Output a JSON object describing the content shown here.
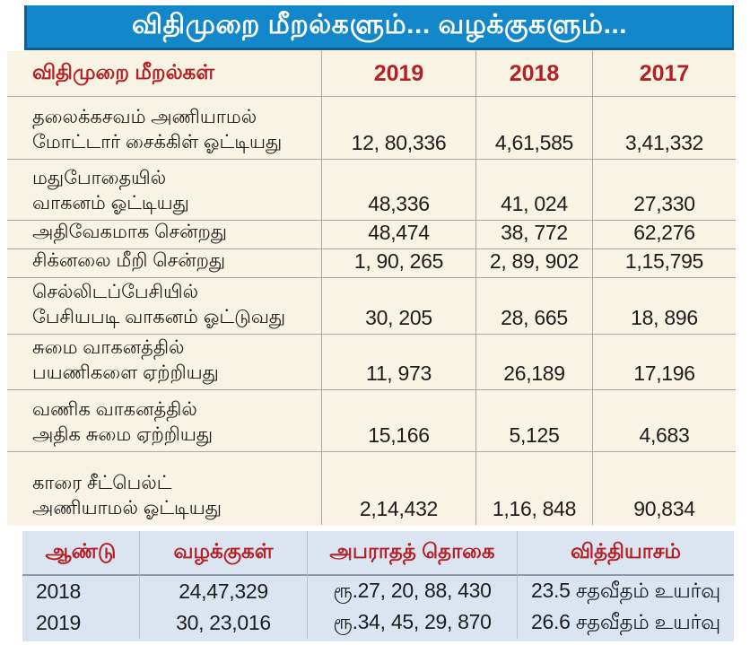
{
  "title": "விதிமுறை மீறல்களும்... வழக்குகளும்...",
  "colors": {
    "title_bar_blue": "#1287c9",
    "title_text": "#ffffff",
    "violations_panel_cream": "#f8f3e2",
    "cases_panel_light_blue": "#dbe5f1",
    "accent_red": "#b32025",
    "value_text": "#1c1c1c",
    "grid_line": "#aaa79b"
  },
  "chart_data": [
    {
      "type": "table",
      "name": "traffic-violations-by-year",
      "header_label": "விதிமுறை மீறல்கள்",
      "year_columns": [
        "2019",
        "2018",
        "2017"
      ],
      "rows": [
        {
          "label_lines": [
            "தலைக்கசவம் அணியாமல்",
            "மோட்டார் சைக்கிள் ஓட்டியது"
          ],
          "values": [
            "12, 80,336",
            "4,61,585",
            "3,41,332"
          ],
          "values_numeric": [
            1280336,
            461585,
            341332
          ]
        },
        {
          "label_lines": [
            "மதுபோதையில்",
            "வாகனம் ஓட்டியது"
          ],
          "values": [
            "48,336",
            "41, 024",
            "27,330"
          ],
          "values_numeric": [
            48336,
            41024,
            27330
          ]
        },
        {
          "label_lines": [
            "அதிவேகமாக சென்றது"
          ],
          "values": [
            "48,474",
            "38, 772",
            "62,276"
          ],
          "values_numeric": [
            48474,
            38772,
            62276
          ]
        },
        {
          "label_lines": [
            "சிக்னலை மீறி சென்றது"
          ],
          "values": [
            "1, 90, 265",
            "2, 89, 902",
            "1,15,795"
          ],
          "values_numeric": [
            190265,
            289902,
            115795
          ]
        },
        {
          "label_lines": [
            "செல்லிடப்பேசியில்",
            "பேசியபடி வாகனம் ஓட்டுவது"
          ],
          "values": [
            "30, 205",
            "28, 665",
            "18, 896"
          ],
          "values_numeric": [
            30205,
            28665,
            18896
          ]
        },
        {
          "label_lines": [
            "சுமை வாகனத்தில்",
            "பயணிகளை ஏற்றியது"
          ],
          "values": [
            "11, 973",
            "26,189",
            "17,196"
          ],
          "values_numeric": [
            11973,
            26189,
            17196
          ]
        },
        {
          "label_lines": [
            "வணிக வாகனத்தில்",
            "அதிக சுமை ஏற்றியது"
          ],
          "values": [
            "15,166",
            "5,125",
            "4,683"
          ],
          "values_numeric": [
            15166,
            5125,
            4683
          ]
        },
        {
          "label_lines": [
            "காரை சீட்பெல்ட்",
            "அணியாமல் ஓட்டியது"
          ],
          "values": [
            "2,14,432",
            "1,16, 848",
            "90,834"
          ],
          "values_numeric": [
            214432,
            116848,
            90834
          ]
        }
      ]
    },
    {
      "type": "table",
      "name": "cases-and-fines-by-year",
      "headers": [
        "ஆண்டு",
        "வழக்குகள்",
        "அபராதத் தொகை",
        "வித்தியாசம்"
      ],
      "rows": [
        [
          "2018",
          "24,47,329",
          "ரூ.27, 20, 88, 430",
          "23.5 சதவீதம் உயர்வு"
        ],
        [
          "2019",
          "30, 23,016",
          "ரூ.34, 45, 29, 870",
          "26.6 சதவீதம் உயர்வு"
        ]
      ],
      "rows_numeric": {
        "years": [
          2018,
          2019
        ],
        "cases": [
          2447329,
          3023016
        ],
        "fine_rupees": [
          272088430,
          344529870
        ],
        "increase_percent": [
          23.5,
          26.6
        ]
      }
    }
  ]
}
